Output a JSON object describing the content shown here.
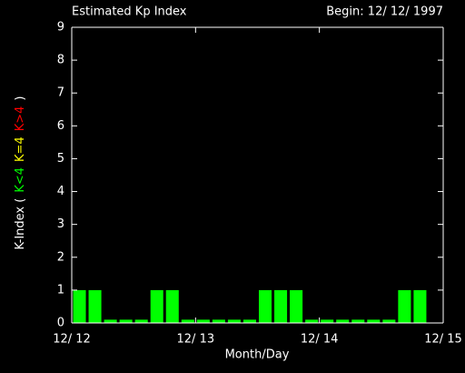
{
  "chart_data": {
    "type": "bar",
    "title": "Estimated Kp Index",
    "subtitle": "Begin: 12/ 12/ 1997",
    "x_label": "Month/Day",
    "y_label": "K-Index (",
    "y_label_close": ")",
    "legend": [
      {
        "name": "K<4",
        "color": "#00ff00"
      },
      {
        "name": "K=4",
        "color": "#ffff00"
      },
      {
        "name": "K>4",
        "color": "#ff0000"
      }
    ],
    "categories": [
      null,
      null,
      null,
      null,
      null,
      null,
      null,
      null,
      null,
      null,
      null,
      null,
      null,
      null,
      null,
      null,
      null,
      null,
      null,
      null,
      null,
      null,
      null,
      null
    ],
    "values": [
      1,
      1,
      0.1,
      0.1,
      0.1,
      1,
      1,
      0.1,
      0.1,
      0.1,
      0.1,
      0.1,
      1,
      1,
      1,
      0.1,
      0.1,
      0.1,
      0.1,
      0.1,
      0.1,
      1,
      1,
      null
    ],
    "color": "#00ff00",
    "xticks": [
      "12/ 12",
      "12/ 13",
      "12/ 14",
      "12/ 15"
    ],
    "ylim": [
      0,
      9
    ],
    "yticks": [
      0,
      1,
      2,
      3,
      4,
      5,
      6,
      7,
      8,
      9
    ]
  }
}
